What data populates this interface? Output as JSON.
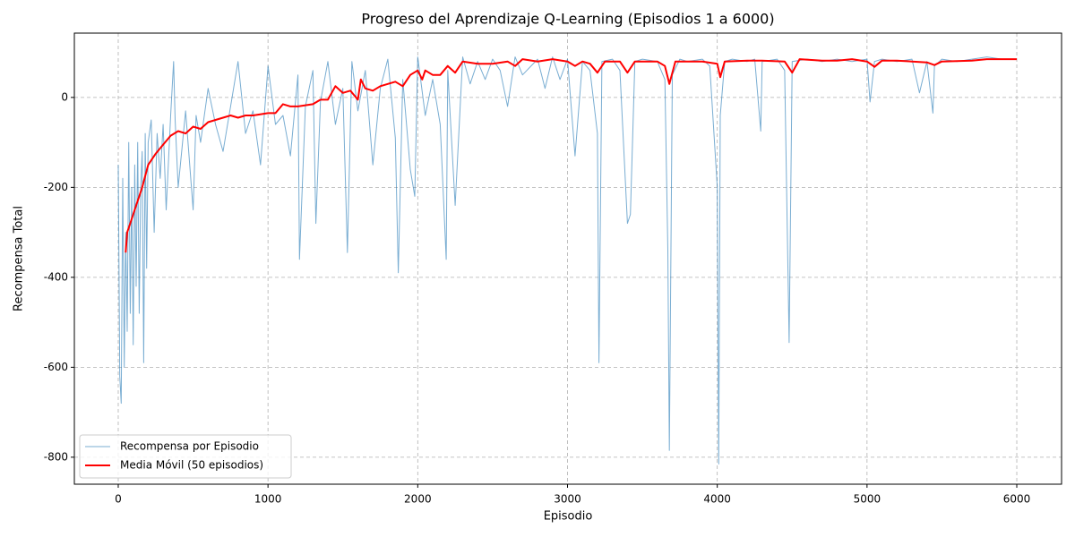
{
  "chart_data": {
    "type": "line",
    "title": "Progreso del Aprendizaje Q-Learning (Episodios 1 a 6000)",
    "x_label": "Episodio",
    "y_label": "Recompensa Total",
    "xlim": [
      -293,
      6299
    ],
    "ylim": [
      -860,
      143
    ],
    "xticks": [
      0,
      1000,
      2000,
      3000,
      4000,
      5000,
      6000
    ],
    "yticks": [
      -800,
      -600,
      -400,
      -200,
      0
    ],
    "grid": true,
    "legend": "lower left",
    "series": [
      {
        "name": "Recompensa por Episodio",
        "color": "#1f77b4",
        "opacity": 0.6,
        "width": 1,
        "x": [
          0,
          10,
          20,
          30,
          40,
          50,
          60,
          70,
          80,
          90,
          100,
          110,
          120,
          130,
          140,
          150,
          160,
          170,
          180,
          190,
          200,
          220,
          240,
          260,
          280,
          300,
          320,
          350,
          370,
          380,
          400,
          450,
          500,
          520,
          550,
          600,
          650,
          700,
          750,
          800,
          850,
          900,
          950,
          1000,
          1050,
          1100,
          1150,
          1200,
          1210,
          1250,
          1300,
          1320,
          1350,
          1400,
          1450,
          1500,
          1530,
          1560,
          1600,
          1650,
          1700,
          1750,
          1800,
          1850,
          1870,
          1900,
          1950,
          1980,
          2000,
          2050,
          2100,
          2150,
          2190,
          2200,
          2250,
          2300,
          2350,
          2400,
          2450,
          2500,
          2550,
          2600,
          2650,
          2700,
          2800,
          2850,
          2900,
          2950,
          3000,
          3050,
          3100,
          3150,
          3200,
          3210,
          3230,
          3300,
          3350,
          3400,
          3420,
          3450,
          3500,
          3600,
          3650,
          3670,
          3680,
          3700,
          3750,
          3800,
          3900,
          3950,
          4000,
          4010,
          4020,
          4050,
          4100,
          4200,
          4250,
          4290,
          4300,
          4400,
          4450,
          4480,
          4500,
          4600,
          4700,
          4800,
          4900,
          5000,
          5020,
          5050,
          5100,
          5200,
          5300,
          5350,
          5400,
          5440,
          5450,
          5500,
          5600,
          5700,
          5800,
          5900,
          6000
        ],
        "values": [
          -150,
          -620,
          -680,
          -180,
          -600,
          -300,
          -520,
          -100,
          -480,
          -200,
          -550,
          -150,
          -420,
          -100,
          -480,
          -200,
          -120,
          -590,
          -80,
          -380,
          -100,
          -50,
          -300,
          -80,
          -180,
          -60,
          -250,
          -40,
          80,
          -50,
          -200,
          -30,
          -250,
          -40,
          -100,
          20,
          -60,
          -120,
          -20,
          80,
          -80,
          -30,
          -150,
          70,
          -60,
          -40,
          -130,
          50,
          -360,
          -20,
          60,
          -280,
          -10,
          80,
          -60,
          20,
          -345,
          80,
          -30,
          60,
          -150,
          20,
          85,
          -90,
          -390,
          40,
          -160,
          -220,
          90,
          -40,
          40,
          -60,
          -360,
          60,
          -240,
          90,
          30,
          80,
          40,
          85,
          60,
          -20,
          90,
          50,
          85,
          20,
          90,
          40,
          85,
          -130,
          80,
          60,
          -80,
          -590,
          80,
          85,
          60,
          -280,
          -260,
          80,
          85,
          80,
          40,
          -340,
          -785,
          50,
          85,
          80,
          85,
          70,
          -200,
          -815,
          -40,
          80,
          85,
          80,
          85,
          -75,
          80,
          85,
          60,
          -545,
          80,
          85,
          80,
          85,
          80,
          85,
          -10,
          80,
          85,
          80,
          85,
          10,
          80,
          -35,
          70,
          85,
          80,
          85,
          90,
          85,
          85
        ]
      },
      {
        "name": "Media Móvil (50 episodios)",
        "color": "#ff0000",
        "opacity": 1,
        "width": 2,
        "x": [
          50,
          60,
          80,
          100,
          130,
          160,
          200,
          250,
          300,
          350,
          400,
          450,
          500,
          550,
          600,
          650,
          700,
          750,
          800,
          850,
          900,
          1000,
          1050,
          1100,
          1150,
          1200,
          1300,
          1350,
          1400,
          1450,
          1500,
          1550,
          1600,
          1620,
          1650,
          1700,
          1750,
          1800,
          1850,
          1900,
          1950,
          2000,
          2030,
          2050,
          2100,
          2150,
          2200,
          2250,
          2300,
          2400,
          2500,
          2600,
          2650,
          2700,
          2800,
          2900,
          3000,
          3050,
          3100,
          3150,
          3200,
          3250,
          3350,
          3400,
          3450,
          3600,
          3650,
          3680,
          3720,
          3800,
          3900,
          4000,
          4020,
          4050,
          4200,
          4300,
          4450,
          4500,
          4550,
          4700,
          4800,
          4900,
          5000,
          5050,
          5100,
          5200,
          5300,
          5400,
          5450,
          5500,
          5700,
          5800,
          6000
        ],
        "values": [
          -345,
          -300,
          -280,
          -260,
          -230,
          -200,
          -150,
          -125,
          -105,
          -85,
          -75,
          -80,
          -65,
          -70,
          -55,
          -50,
          -45,
          -40,
          -45,
          -40,
          -40,
          -35,
          -35,
          -15,
          -20,
          -20,
          -15,
          -5,
          -5,
          25,
          10,
          15,
          -5,
          40,
          20,
          15,
          25,
          30,
          35,
          25,
          50,
          60,
          40,
          60,
          50,
          50,
          70,
          55,
          80,
          75,
          75,
          80,
          70,
          85,
          80,
          85,
          80,
          70,
          80,
          75,
          55,
          80,
          80,
          55,
          80,
          80,
          70,
          30,
          80,
          80,
          80,
          75,
          45,
          80,
          82,
          82,
          80,
          55,
          85,
          82,
          82,
          85,
          80,
          68,
          82,
          82,
          80,
          78,
          72,
          80,
          82,
          85,
          85
        ]
      }
    ]
  }
}
